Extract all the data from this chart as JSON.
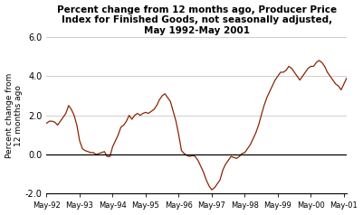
{
  "title": "Percent change from 12 months ago, Producer Price\nIndex for Finished Goods, not seasonally adjusted,\nMay 1992-May 2001",
  "ylabel": "Percent change from\n12 months ago",
  "line_color": "#8B2500",
  "background_color": "#ffffff",
  "ylim": [
    -2.0,
    6.0
  ],
  "yticks": [
    -2.0,
    0.0,
    2.0,
    4.0,
    6.0
  ],
  "xtick_labels": [
    "May-92",
    "May-93",
    "May-94",
    "May-95",
    "May-96",
    "May-97",
    "May-98",
    "May-99",
    "May-00",
    "May-01"
  ],
  "values": [
    1.6,
    1.7,
    1.7,
    1.65,
    1.5,
    1.7,
    1.9,
    2.1,
    2.5,
    2.3,
    2.0,
    1.5,
    0.7,
    0.3,
    0.2,
    0.15,
    0.1,
    0.1,
    0.0,
    0.05,
    0.1,
    0.15,
    -0.1,
    -0.1,
    0.4,
    0.7,
    1.0,
    1.4,
    1.5,
    1.7,
    2.0,
    1.8,
    2.0,
    2.1,
    2.0,
    2.1,
    2.15,
    2.1,
    2.2,
    2.3,
    2.5,
    2.8,
    3.0,
    3.1,
    2.9,
    2.7,
    2.2,
    1.7,
    1.0,
    0.2,
    0.05,
    -0.05,
    -0.1,
    -0.05,
    -0.1,
    -0.3,
    -0.6,
    -0.9,
    -1.3,
    -1.6,
    -1.8,
    -1.7,
    -1.5,
    -1.3,
    -0.8,
    -0.5,
    -0.3,
    -0.1,
    -0.15,
    -0.2,
    -0.1,
    0.05,
    0.1,
    0.3,
    0.5,
    0.8,
    1.1,
    1.5,
    2.0,
    2.5,
    2.9,
    3.2,
    3.5,
    3.8,
    4.0,
    4.2,
    4.2,
    4.3,
    4.5,
    4.4,
    4.2,
    4.0,
    3.8,
    4.0,
    4.2,
    4.4,
    4.5,
    4.5,
    4.7,
    4.8,
    4.7,
    4.5,
    4.2,
    4.0,
    3.8,
    3.6,
    3.5,
    3.3,
    3.6,
    3.9
  ]
}
